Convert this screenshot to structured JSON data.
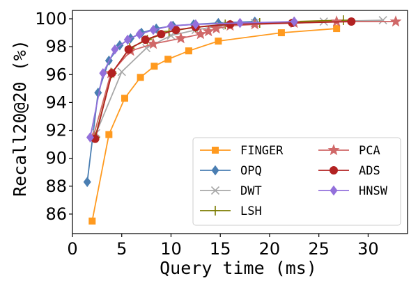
{
  "chart_data": {
    "type": "line",
    "xlabel": "Query time (ms)",
    "ylabel": "Recall20@20 (%)",
    "xlim": [
      0,
      34
    ],
    "ylim": [
      84.6,
      100.6
    ],
    "xticks": [
      0,
      5,
      10,
      15,
      20,
      25,
      30
    ],
    "yticks": [
      86,
      88,
      90,
      92,
      94,
      96,
      98,
      100
    ],
    "grid": false,
    "legend": {
      "placement": "lower-right",
      "columns": 2
    },
    "series": [
      {
        "name": "FINGER",
        "color": "#ff9a1f",
        "marker": "square",
        "x": [
          2.0,
          3.7,
          5.3,
          6.9,
          8.3,
          9.7,
          11.8,
          14.8,
          21.2,
          26.8
        ],
        "y": [
          85.5,
          91.7,
          94.3,
          95.8,
          96.6,
          97.1,
          97.7,
          98.4,
          99.0,
          99.3
        ]
      },
      {
        "name": "OPQ",
        "color": "#4a7eb2",
        "marker": "diamond",
        "x": [
          1.5,
          2.6,
          3.7,
          4.8,
          5.9,
          7.0,
          8.5,
          10.2,
          12.3,
          14.8,
          18.5
        ],
        "y": [
          88.3,
          94.7,
          97.0,
          98.1,
          98.6,
          99.0,
          99.3,
          99.5,
          99.6,
          99.7,
          99.8
        ]
      },
      {
        "name": "DWT",
        "color": "#a8a8a8",
        "marker": "x",
        "x": [
          2.4,
          5.0,
          7.5,
          10.0,
          12.5,
          15.0,
          18.5,
          25.5,
          31.5
        ],
        "y": [
          91.8,
          96.2,
          97.9,
          98.8,
          99.2,
          99.5,
          99.7,
          99.8,
          99.9
        ]
      },
      {
        "name": "LSH",
        "color": "#7b7b00",
        "marker": "plus",
        "x": [
          2.3,
          4.0,
          5.8,
          7.6,
          9.8,
          12.5,
          15.5,
          19.0,
          22.5,
          27.5
        ],
        "y": [
          91.5,
          96.1,
          97.9,
          98.5,
          99.1,
          99.4,
          99.6,
          99.7,
          99.8,
          99.9
        ]
      },
      {
        "name": "PCA",
        "color": "#d06868",
        "marker": "star",
        "x": [
          2.1,
          3.9,
          5.9,
          8.2,
          11.0,
          13.0,
          13.8,
          14.6,
          16.0,
          18.5,
          22.5,
          26.8,
          32.8
        ],
        "y": [
          91.5,
          96.1,
          97.7,
          98.2,
          98.6,
          98.9,
          99.1,
          99.3,
          99.5,
          99.6,
          99.7,
          99.8,
          99.8
        ]
      },
      {
        "name": "ADS",
        "color": "#b22222",
        "marker": "circle",
        "x": [
          2.3,
          4.0,
          5.7,
          7.4,
          9.0,
          10.5,
          12.5,
          16.0,
          22.3,
          28.3
        ],
        "y": [
          91.4,
          96.1,
          97.8,
          98.5,
          98.9,
          99.2,
          99.4,
          99.6,
          99.7,
          99.8
        ]
      },
      {
        "name": "HNSW",
        "color": "#9370db",
        "marker": "diamond",
        "x": [
          1.8,
          3.1,
          4.3,
          5.6,
          6.8,
          8.2,
          10.0,
          12.5,
          17.0,
          22.5
        ],
        "y": [
          91.5,
          96.1,
          97.8,
          98.5,
          98.9,
          99.2,
          99.5,
          99.6,
          99.7,
          99.8
        ]
      }
    ]
  }
}
